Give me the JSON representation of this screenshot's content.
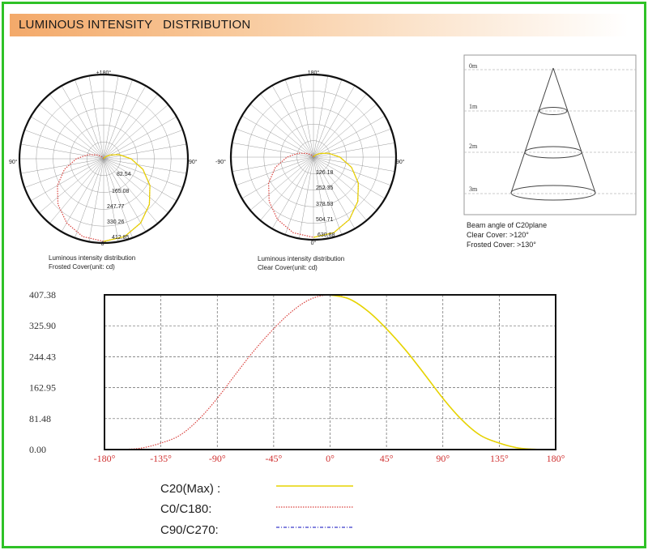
{
  "header": {
    "title": "LUMINOUS INTENSITY   DISTRIBUTION"
  },
  "polar1": {
    "label_top": "±180°",
    "label_left": "90°",
    "label_right": "90°",
    "label_bottom": "0°",
    "rings": [
      "82.54",
      "165.08",
      "247.77",
      "330.26",
      "412.85"
    ],
    "caption_line1": "Luminous intensity distribution",
    "caption_line2": "Frosted Cover(unit: cd)"
  },
  "polar2": {
    "label_top": "180°",
    "label_left": "-90°",
    "label_right": "90°",
    "label_bottom": "0°",
    "rings": [
      "126.18",
      "252.35",
      "378.53",
      "504.71",
      "630.88"
    ],
    "caption_line1": "Luminous intensity distribution",
    "caption_line2": "Clear  Cover(unit: cd)"
  },
  "beam": {
    "distances": [
      "0m",
      "1m",
      "2m",
      "3m"
    ],
    "title": "Beam angle of C20plane",
    "clear": "Clear Cover:  >120°",
    "frosted": "Frosted Cover:  >130°"
  },
  "legend": {
    "c20": "C20(Max) :",
    "c0": "C0/C180:",
    "c90": "C90/C270:"
  },
  "colors": {
    "c20": "#e6d400",
    "c0": "#d9413d",
    "c90": "#3a3ac9",
    "frame": "#2fc227"
  },
  "chart_data": {
    "type": "line",
    "x_ticks": [
      "-180°",
      "-135°",
      "-90°",
      "-45°",
      "0°",
      "45°",
      "90°",
      "135°",
      "180°"
    ],
    "y_ticks": [
      "0.00",
      "81.48",
      "162.95",
      "244.43",
      "325.90",
      "407.38"
    ],
    "xlim": [
      -180,
      180
    ],
    "ylim": [
      0,
      407.38
    ],
    "grid": true,
    "series": [
      {
        "name": "C0/C180",
        "x": [
          -180,
          -165,
          -150,
          -135,
          -120,
          -105,
          -90,
          -75,
          -60,
          -45,
          -30,
          -15,
          0,
          15,
          30,
          45,
          60,
          75,
          90,
          105,
          120,
          135,
          150,
          165,
          180
        ],
        "values": [
          0,
          0.4,
          4.2,
          17,
          37.3,
          78.6,
          135,
          200,
          263,
          318,
          365,
          397,
          407,
          397,
          365,
          318,
          263,
          200,
          135,
          78.6,
          37.3,
          17,
          4.2,
          0.4,
          0
        ]
      },
      {
        "name": "C20(Max)",
        "x": [
          0,
          15,
          30,
          45,
          60,
          75,
          90,
          105,
          120,
          135,
          150,
          165,
          180
        ],
        "values": [
          407,
          397,
          365,
          318,
          263,
          200,
          135,
          78.6,
          37.3,
          17,
          4.2,
          0.4,
          0
        ]
      },
      {
        "name": "C90/C270",
        "x": [
          -180,
          180
        ],
        "values": [
          0,
          0
        ]
      }
    ]
  }
}
